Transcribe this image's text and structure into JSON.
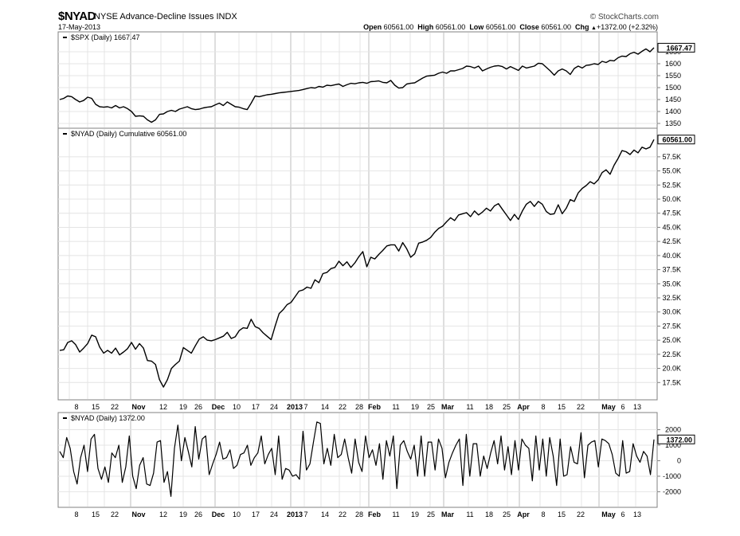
{
  "header": {
    "symbol": "$NYAD",
    "name": "NYSE Advance-Decline Issues",
    "exchange": "INDX",
    "date": "17-May-2013",
    "brand": "© StockCharts.com",
    "ohlc": [
      {
        "label": "Open",
        "value": "60561.00"
      },
      {
        "label": "High",
        "value": "60561.00"
      },
      {
        "label": "Low",
        "value": "60561.00"
      },
      {
        "label": "Close",
        "value": "60561.00"
      },
      {
        "label": "Chg",
        "value": "+1372.00 (+2.32%)"
      }
    ],
    "ohlc_arrow": "▲"
  },
  "chart_data": [
    {
      "type": "line",
      "title": "$SPX (Daily) 1667.47",
      "last_label": "1667.47",
      "ylim": [
        1340,
        1690
      ],
      "yticks": [
        {
          "v": 1350,
          "label": "1350"
        },
        {
          "v": 1400,
          "label": "1400"
        },
        {
          "v": 1450,
          "label": "1450"
        },
        {
          "v": 1500,
          "label": "1500"
        },
        {
          "v": 1550,
          "label": "1550"
        },
        {
          "v": 1600,
          "label": "1600"
        },
        {
          "v": 1650,
          "label": "1650"
        }
      ],
      "values": [
        1450,
        1455,
        1465,
        1462,
        1450,
        1440,
        1446,
        1460,
        1455,
        1430,
        1420,
        1418,
        1420,
        1415,
        1425,
        1415,
        1420,
        1412,
        1400,
        1380,
        1382,
        1380,
        1365,
        1355,
        1365,
        1388,
        1390,
        1400,
        1405,
        1400,
        1410,
        1415,
        1420,
        1412,
        1408,
        1410,
        1415,
        1418,
        1420,
        1428,
        1435,
        1425,
        1440,
        1430,
        1420,
        1418,
        1412,
        1408,
        1435,
        1465,
        1462,
        1466,
        1470,
        1472,
        1475,
        1478,
        1480,
        1482,
        1484,
        1486,
        1488,
        1492,
        1496,
        1500,
        1498,
        1505,
        1502,
        1510,
        1508,
        1512,
        1515,
        1505,
        1512,
        1518,
        1516,
        1520,
        1522,
        1518,
        1525,
        1526,
        1528,
        1522,
        1520,
        1530,
        1510,
        1498,
        1500,
        1515,
        1518,
        1520,
        1530,
        1540,
        1548,
        1550,
        1552,
        1560,
        1565,
        1560,
        1570,
        1570,
        1575,
        1580,
        1590,
        1588,
        1582,
        1590,
        1570,
        1578,
        1585,
        1590,
        1592,
        1588,
        1578,
        1588,
        1580,
        1572,
        1590,
        1582,
        1586,
        1590,
        1602,
        1600,
        1585,
        1570,
        1552,
        1570,
        1578,
        1570,
        1555,
        1580,
        1590,
        1582,
        1593,
        1595,
        1600,
        1597,
        1610,
        1605,
        1614,
        1612,
        1625,
        1632,
        1630,
        1642,
        1648,
        1640,
        1652,
        1662,
        1650,
        1667
      ]
    },
    {
      "type": "line",
      "title": "$NYAD (Daily) Cumulative 60561.00",
      "last_label": "60561.00",
      "ylim": [
        15000,
        62000
      ],
      "yticks": [
        {
          "v": 17500,
          "label": "17.5K"
        },
        {
          "v": 20000,
          "label": "20.0K"
        },
        {
          "v": 22500,
          "label": "22.5K"
        },
        {
          "v": 25000,
          "label": "25.0K"
        },
        {
          "v": 27500,
          "label": "27.5K"
        },
        {
          "v": 30000,
          "label": "30.0K"
        },
        {
          "v": 32500,
          "label": "32.5K"
        },
        {
          "v": 35000,
          "label": "35.0K"
        },
        {
          "v": 37500,
          "label": "37.5K"
        },
        {
          "v": 40000,
          "label": "40.0K"
        },
        {
          "v": 42500,
          "label": "42.5K"
        },
        {
          "v": 45000,
          "label": "45.0K"
        },
        {
          "v": 47500,
          "label": "47.5K"
        },
        {
          "v": 50000,
          "label": "50.0K"
        },
        {
          "v": 52500,
          "label": "52.5K"
        },
        {
          "v": 55000,
          "label": "55.0K"
        },
        {
          "v": 57500,
          "label": "57.5K"
        }
      ],
      "values": [
        23200,
        23300,
        24600,
        24900,
        24200,
        22900,
        23600,
        24400,
        25900,
        25600,
        23800,
        22700,
        23200,
        22700,
        23600,
        22400,
        22900,
        23500,
        24600,
        23400,
        24400,
        23600,
        21400,
        21300,
        20700,
        18000,
        16700,
        18000,
        20000,
        20700,
        21300,
        23700,
        23200,
        22700,
        24000,
        25200,
        25600,
        25000,
        24900,
        25100,
        25400,
        25700,
        26400,
        25300,
        25600,
        26700,
        27200,
        27100,
        28700,
        27400,
        27100,
        26300,
        25700,
        25100,
        27500,
        29700,
        30400,
        31300,
        31700,
        32700,
        33700,
        33900,
        34400,
        34200,
        35700,
        35200,
        36800,
        37000,
        37700,
        37900,
        39000,
        38200,
        38900,
        37900,
        38700,
        39800,
        40700,
        38000,
        39700,
        39400,
        40200,
        40900,
        41700,
        41900,
        41900,
        40800,
        42300,
        41200,
        39700,
        40300,
        42200,
        42400,
        42700,
        43200,
        44100,
        44800,
        45200,
        46000,
        46700,
        46200,
        47200,
        47400,
        47600,
        46900,
        47900,
        47200,
        47700,
        48400,
        47900,
        48800,
        49200,
        48200,
        47200,
        46200,
        47300,
        46400,
        47900,
        49100,
        49600,
        48700,
        49600,
        49100,
        47800,
        47300,
        47400,
        49000,
        47400,
        48400,
        49900,
        49600,
        51100,
        51900,
        52400,
        53100,
        52700,
        53400,
        54700,
        55200,
        54400,
        56000,
        57200,
        58600,
        58400,
        57900,
        58700,
        58200,
        59200,
        58900,
        59200,
        60561
      ]
    },
    {
      "type": "line",
      "title": "$NYAD (Daily) 1372.00",
      "last_label": "1372.00",
      "ylim": [
        -2800,
        2900
      ],
      "yticks": [
        {
          "v": -2000,
          "label": "-2000"
        },
        {
          "v": -1000,
          "label": "-1000"
        },
        {
          "v": 0,
          "label": "0"
        },
        {
          "v": 1000,
          "label": "1000"
        },
        {
          "v": 2000,
          "label": "2000"
        }
      ],
      "values": [
        600,
        200,
        1500,
        800,
        -700,
        -1500,
        200,
        1000,
        -700,
        1400,
        1700,
        -500,
        -1200,
        -400,
        -1400,
        500,
        200,
        1000,
        -1400,
        -400,
        1600,
        -1000,
        -1800,
        -300,
        200,
        -1500,
        -1600,
        -800,
        1200,
        1300,
        -1400,
        -700,
        -2300,
        800,
        2300,
        0,
        1500,
        600,
        -400,
        2200,
        100,
        1400,
        1600,
        -900,
        -200,
        400,
        1200,
        100,
        200,
        700,
        -500,
        -300,
        400,
        500,
        1000,
        -300,
        200,
        500,
        1600,
        -200,
        400,
        800,
        -900,
        1600,
        -1200,
        -500,
        -600,
        -1000,
        -900,
        -1200,
        1900,
        -600,
        -200,
        1200,
        2500,
        2400,
        -200,
        800,
        -300,
        1700,
        200,
        400,
        1400,
        200,
        -800,
        1400,
        -100,
        -700,
        1600,
        200,
        700,
        -300,
        1100,
        -1200,
        1300,
        300,
        1600,
        -1800,
        1000,
        1300,
        600,
        100,
        1000,
        -1000,
        1600,
        -1000,
        1200,
        1200,
        -600,
        1400,
        800,
        -1100,
        -100,
        500,
        1000,
        1400,
        -1600,
        1700,
        -1000,
        1100,
        1100,
        -1000,
        300,
        -500,
        500,
        1300,
        -200,
        1600,
        -600,
        900,
        -900,
        1300,
        -600,
        1400,
        1000,
        800,
        -1300,
        1600,
        -600,
        1400,
        -1000,
        1500,
        300,
        -1600,
        1400,
        -1000,
        -900,
        900,
        -100,
        -200,
        1800,
        -1100,
        1000,
        1200,
        1300,
        -400,
        1400,
        1300,
        1100,
        400,
        -800,
        -1000,
        1300,
        -800,
        -700,
        1100,
        300,
        -100,
        600,
        300,
        -900,
        1372
      ]
    }
  ],
  "x_axis": {
    "labels": [
      {
        "t": "8",
        "b": false
      },
      {
        "t": "15",
        "b": false
      },
      {
        "t": "22",
        "b": false
      },
      {
        "t": "Nov",
        "b": true
      },
      {
        "t": "12",
        "b": false
      },
      {
        "t": "19",
        "b": false
      },
      {
        "t": "26",
        "b": false
      },
      {
        "t": "Dec",
        "b": true
      },
      {
        "t": "10",
        "b": false
      },
      {
        "t": "17",
        "b": false
      },
      {
        "t": "24",
        "b": false
      },
      {
        "t": "2013",
        "b": true
      },
      {
        "t": "7",
        "b": false
      },
      {
        "t": "14",
        "b": false
      },
      {
        "t": "22",
        "b": false
      },
      {
        "t": "28",
        "b": false
      },
      {
        "t": "Feb",
        "b": true
      },
      {
        "t": "11",
        "b": false
      },
      {
        "t": "19",
        "b": false
      },
      {
        "t": "25",
        "b": false
      },
      {
        "t": "Mar",
        "b": true
      },
      {
        "t": "11",
        "b": false
      },
      {
        "t": "18",
        "b": false
      },
      {
        "t": "25",
        "b": false
      },
      {
        "t": "Apr",
        "b": true
      },
      {
        "t": "8",
        "b": false
      },
      {
        "t": "15",
        "b": false
      },
      {
        "t": "22",
        "b": false
      },
      {
        "t": "May",
        "b": true
      },
      {
        "t": "6",
        "b": false
      },
      {
        "t": "13",
        "b": false
      }
    ]
  }
}
